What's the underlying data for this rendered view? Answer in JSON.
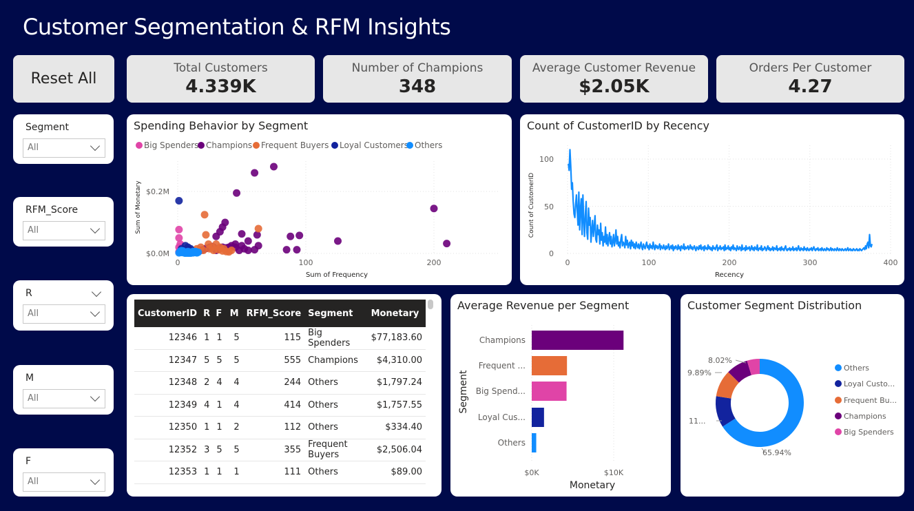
{
  "title": "Customer Segmentation & RFM Insights",
  "reset_label": "Reset All",
  "kpis": [
    {
      "label": "Total Customers",
      "value": "4.339K"
    },
    {
      "label": "Number of Champions",
      "value": "348"
    },
    {
      "label": "Average Customer Revenue",
      "value": "$2.05K"
    },
    {
      "label": "Orders Per Customer",
      "value": "4.27"
    }
  ],
  "slicers": [
    {
      "label": "Segment",
      "value": "All"
    },
    {
      "label": "RFM_Score",
      "value": "All"
    },
    {
      "label": "R",
      "value": "All"
    },
    {
      "label": "M",
      "value": "All"
    },
    {
      "label": "F",
      "value": "All"
    }
  ],
  "colors": {
    "big_spenders": "#e044a7",
    "champions": "#6b007b",
    "frequent_buyers": "#e66c37",
    "loyal_customers": "#12239e",
    "others": "#118dff",
    "background": "#000a4a",
    "line": "#118dff"
  },
  "scatter_chart": {
    "title": "Spending Behavior by Segment",
    "xlabel": "Sum of Frequency",
    "ylabel": "Sum of Monetary",
    "x_ticks": [
      "0",
      "100",
      "200"
    ],
    "y_ticks": [
      "$0.0M",
      "$0.2M"
    ],
    "legend": [
      "Big Spenders",
      "Champions",
      "Frequent Buyers",
      "Loyal Customers",
      "Others"
    ]
  },
  "recency_chart": {
    "title": "Count of CustomerID by Recency",
    "xlabel": "Recency",
    "ylabel": "Count of CustomerID",
    "x_ticks": [
      "0",
      "100",
      "200",
      "300",
      "400"
    ],
    "y_ticks": [
      "0",
      "50",
      "100"
    ]
  },
  "table": {
    "headers": [
      "CustomerID",
      "R",
      "F",
      "M",
      "RFM_Score",
      "Segment",
      "Monetary"
    ],
    "rows": [
      [
        "12346",
        "1",
        "1",
        "5",
        "115",
        "Big Spenders",
        "$77,183.60"
      ],
      [
        "12347",
        "5",
        "5",
        "5",
        "555",
        "Champions",
        "$4,310.00"
      ],
      [
        "12348",
        "2",
        "4",
        "4",
        "244",
        "Others",
        "$1,797.24"
      ],
      [
        "12349",
        "4",
        "1",
        "4",
        "414",
        "Others",
        "$1,757.55"
      ],
      [
        "12350",
        "1",
        "1",
        "2",
        "112",
        "Others",
        "$334.40"
      ],
      [
        "12352",
        "3",
        "5",
        "5",
        "355",
        "Frequent Buyers",
        "$2,506.04"
      ],
      [
        "12353",
        "1",
        "1",
        "1",
        "111",
        "Others",
        "$89.00"
      ]
    ]
  },
  "bar_chart": {
    "title": "Average Revenue per Segment",
    "xlabel": "Monetary",
    "ylabel": "Segment",
    "x_ticks": [
      "$0K",
      "$10K"
    ],
    "category_labels": [
      "Champions",
      "Frequent ...",
      "Big Spend...",
      "Loyal Cus...",
      "Others"
    ]
  },
  "donut_chart": {
    "title": "Customer Segment Distribution",
    "legend": [
      "Others",
      "Loyal Custo...",
      "Frequent Bu...",
      "Champions",
      "Big Spenders"
    ],
    "labels": [
      "65.94%",
      "11...",
      "9.89%",
      "8.02%"
    ]
  },
  "chart_data": [
    {
      "type": "scatter",
      "title": "Spending Behavior by Segment",
      "xlabel": "Sum of Frequency",
      "ylabel": "Sum of Monetary",
      "xlim": [
        0,
        215
      ],
      "ylim": [
        0,
        0.3
      ],
      "series": [
        {
          "name": "Champions",
          "color": "#6b007b",
          "points": [
            [
              75,
              0.28
            ],
            [
              60,
              0.26
            ],
            [
              46,
              0.195
            ],
            [
              200,
              0.145
            ],
            [
              210,
              0.032
            ],
            [
              125,
              0.04
            ],
            [
              95,
              0.058
            ],
            [
              88,
              0.055
            ],
            [
              62,
              0.06
            ],
            [
              50,
              0.063
            ],
            [
              30,
              0.055
            ],
            [
              33,
              0.07
            ],
            [
              35,
              0.085
            ],
            [
              37,
              0.1
            ],
            [
              55,
              0.04
            ],
            [
              63,
              0.025
            ],
            [
              85,
              0.012
            ],
            [
              93,
              0.012
            ],
            [
              45,
              0.03
            ],
            [
              42,
              0.025
            ],
            [
              40,
              0.02
            ],
            [
              38,
              0.018
            ],
            [
              32,
              0.015
            ],
            [
              27,
              0.022
            ],
            [
              25,
              0.02
            ],
            [
              22,
              0.016
            ],
            [
              20,
              0.012
            ],
            [
              48,
              0.01
            ],
            [
              52,
              0.015
            ],
            [
              30,
              0.01
            ],
            [
              55,
              0.01
            ],
            [
              40,
              0.01
            ],
            [
              35,
              0.02
            ],
            [
              28,
              0.02
            ],
            [
              45,
              0.02
            ],
            [
              50,
              0.025
            ],
            [
              18,
              0.01
            ],
            [
              60,
              0.012
            ]
          ]
        },
        {
          "name": "Frequent Buyers",
          "color": "#e66c37",
          "points": [
            [
              21,
              0.125
            ],
            [
              63,
              0.08
            ],
            [
              22,
              0.06
            ],
            [
              24,
              0.03
            ],
            [
              30,
              0.03
            ],
            [
              15,
              0.015
            ],
            [
              18,
              0.02
            ],
            [
              20,
              0.01
            ],
            [
              25,
              0.015
            ],
            [
              28,
              0.01
            ],
            [
              32,
              0.012
            ],
            [
              35,
              0.008
            ],
            [
              38,
              0.006
            ],
            [
              40,
              0.005
            ],
            [
              12,
              0.01
            ],
            [
              27,
              0.02
            ],
            [
              33,
              0.02
            ],
            [
              36,
              0.015
            ],
            [
              42,
              0.01
            ]
          ]
        },
        {
          "name": "Loyal Customers",
          "color": "#12239e",
          "points": [
            [
              1,
              0.17
            ],
            [
              3,
              0.015
            ],
            [
              5,
              0.01
            ],
            [
              8,
              0.02
            ],
            [
              10,
              0.015
            ],
            [
              6,
              0.025
            ],
            [
              4,
              0.008
            ],
            [
              7,
              0.005
            ]
          ]
        },
        {
          "name": "Big Spenders",
          "color": "#e044a7",
          "points": [
            [
              1,
              0.077
            ],
            [
              1,
              0.05
            ],
            [
              2,
              0.03
            ],
            [
              1,
              0.02
            ],
            [
              2,
              0.012
            ],
            [
              3,
              0.008
            ],
            [
              1,
              0.005
            ]
          ]
        },
        {
          "name": "Others",
          "color": "#118dff",
          "points": [
            [
              1,
              0.002
            ],
            [
              2,
              0.004
            ],
            [
              3,
              0.003
            ],
            [
              4,
              0.005
            ],
            [
              5,
              0.002
            ],
            [
              6,
              0.004
            ],
            [
              7,
              0.003
            ],
            [
              8,
              0.006
            ],
            [
              9,
              0.002
            ],
            [
              10,
              0.004
            ],
            [
              11,
              0.003
            ],
            [
              12,
              0.002
            ],
            [
              13,
              0.005
            ],
            [
              14,
              0.003
            ],
            [
              15,
              0.002
            ],
            [
              16,
              0.004
            ],
            [
              2,
              0.007
            ],
            [
              4,
              0.008
            ],
            [
              6,
              0.001
            ],
            [
              8,
              0.001
            ],
            [
              10,
              0.001
            ],
            [
              12,
              0.006
            ],
            [
              14,
              0.006
            ],
            [
              3,
              0.009
            ]
          ]
        }
      ]
    },
    {
      "type": "line",
      "title": "Count of CustomerID by Recency",
      "xlabel": "Recency",
      "ylabel": "Count of CustomerID",
      "xlim": [
        0,
        400
      ],
      "ylim": [
        0,
        115
      ],
      "series": [
        {
          "name": "Count of CustomerID",
          "color": "#118dff",
          "x_start": 1,
          "x_step": 1,
          "values": [
            95,
            88,
            110,
            92,
            68,
            75,
            55,
            42,
            38,
            52,
            62,
            45,
            30,
            65,
            25,
            48,
            58,
            20,
            62,
            35,
            18,
            40,
            55,
            22,
            15,
            48,
            30,
            38,
            12,
            25,
            35,
            18,
            28,
            40,
            15,
            12,
            30,
            20,
            25,
            10,
            32,
            14,
            22,
            8,
            18,
            12,
            28,
            10,
            20,
            8,
            15,
            22,
            10,
            18,
            7,
            12,
            20,
            8,
            14,
            25,
            10,
            18,
            8,
            12,
            6,
            15,
            20,
            8,
            12,
            10,
            6,
            18,
            9,
            14,
            6,
            10,
            12,
            5,
            14,
            8,
            12,
            6,
            10,
            5,
            12,
            8,
            6,
            10,
            5,
            8,
            12,
            6,
            4,
            10,
            7,
            5,
            9,
            12,
            6,
            8,
            4,
            10,
            6,
            8,
            5,
            12,
            7,
            4,
            9,
            6,
            8,
            5,
            7,
            10,
            4,
            8,
            6,
            5,
            9,
            6,
            4,
            8,
            5,
            7,
            10,
            4,
            6,
            8,
            5,
            9,
            3,
            7,
            5,
            8,
            6,
            4,
            9,
            5,
            7,
            3,
            8,
            6,
            5,
            10,
            4,
            7,
            5,
            6,
            8,
            4,
            6,
            9,
            5,
            7,
            4,
            6,
            8,
            5,
            3,
            7,
            6,
            4,
            8,
            5,
            9,
            4,
            6,
            7,
            3,
            8,
            5,
            6,
            4,
            9,
            5,
            7,
            4,
            6,
            3,
            8,
            5,
            6,
            4,
            7,
            9,
            3,
            6,
            5,
            8,
            4,
            6,
            5,
            7,
            3,
            9,
            4,
            6,
            5,
            8,
            4,
            6,
            3,
            7,
            5,
            9,
            4,
            6,
            5,
            3,
            8,
            5,
            4,
            7,
            6,
            3,
            9,
            4,
            5,
            6,
            3,
            8,
            4,
            6,
            5,
            7,
            3,
            5,
            8,
            4,
            6,
            3,
            7,
            5,
            4,
            9,
            3,
            5,
            6,
            4,
            8,
            3,
            5,
            4,
            7,
            6,
            3,
            5,
            8,
            4,
            6,
            3,
            5,
            4,
            7,
            3,
            6,
            5,
            4,
            8,
            3,
            5,
            4,
            6,
            3,
            7,
            4,
            5,
            3,
            6,
            8,
            4,
            3,
            5,
            4,
            6,
            3,
            5,
            4,
            7,
            3,
            5,
            4,
            6,
            3,
            5,
            8,
            4,
            3,
            6,
            4,
            5,
            3,
            7,
            4,
            5,
            3,
            6,
            4,
            3,
            5,
            4,
            6,
            3,
            5,
            7,
            4,
            3,
            5,
            4,
            6,
            3,
            4,
            5,
            3,
            6,
            4,
            3,
            5,
            4,
            3,
            6,
            4,
            5,
            3,
            4,
            6,
            3,
            5,
            4,
            3,
            5,
            4,
            3,
            6,
            4,
            3,
            5,
            4,
            3,
            5,
            4,
            3,
            4,
            5,
            3,
            4,
            6,
            3,
            4,
            5,
            3,
            4,
            3,
            5,
            4,
            3,
            4,
            5,
            3,
            4,
            3,
            5,
            4,
            3,
            4,
            5,
            6,
            4,
            8,
            5,
            10,
            12,
            6,
            20,
            8,
            7,
            10
          ]
        }
      ]
    },
    {
      "type": "bar",
      "orientation": "horizontal",
      "title": "Average Revenue per Segment",
      "xlabel": "Monetary",
      "ylabel": "Segment",
      "xlim": [
        0,
        12000
      ],
      "categories": [
        "Champions",
        "Frequent Buyers",
        "Big Spenders",
        "Loyal Customers",
        "Others"
      ],
      "values": [
        11200,
        4300,
        4250,
        1500,
        550
      ],
      "colors": [
        "#6b007b",
        "#e66c37",
        "#e044a7",
        "#12239e",
        "#118dff"
      ]
    },
    {
      "type": "pie",
      "title": "Customer Segment Distribution",
      "categories": [
        "Others",
        "Loyal Customers",
        "Frequent Buyers",
        "Champions",
        "Big Spenders"
      ],
      "values": [
        65.94,
        11.5,
        9.89,
        8.02,
        4.65
      ],
      "colors": [
        "#118dff",
        "#12239e",
        "#e66c37",
        "#6b007b",
        "#e044a7"
      ]
    }
  ]
}
